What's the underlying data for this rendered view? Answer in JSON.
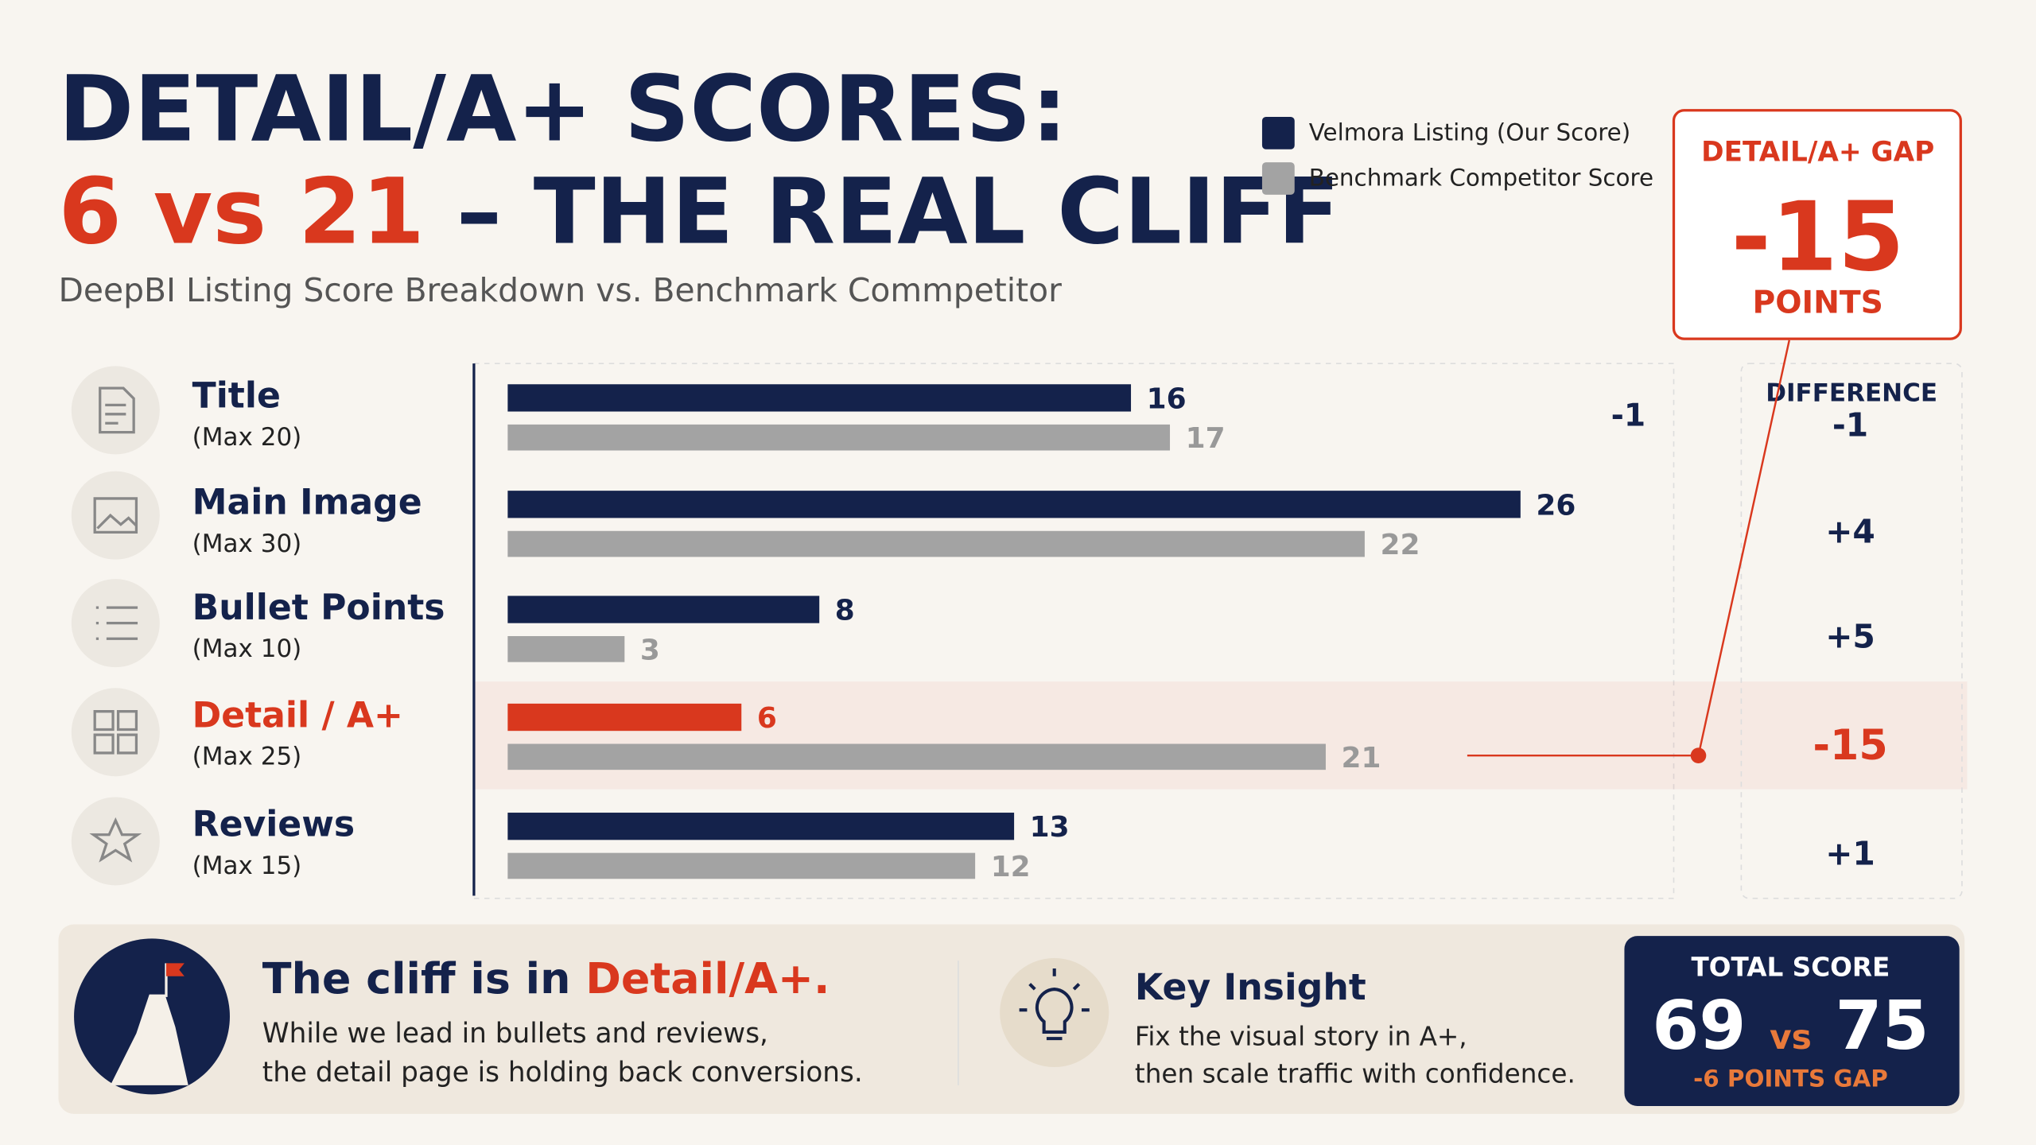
{
  "header": {
    "title_line1": "DETAIL/A+ SCORES:",
    "title_highlight": "6 vs 21",
    "title_rest": "– THE REAL CLIFF",
    "subtitle": "DeepBI Listing Score Breakdown vs. Benchmark Commpetitor"
  },
  "chart_data": {
    "type": "bar",
    "orientation": "horizontal",
    "categories": [
      "Title",
      "Main Image",
      "Bullet Points",
      "Detail / A+",
      "Reviews"
    ],
    "category_notes": [
      "(Max 20)",
      "(Max 30)",
      "(Max 10)",
      "(Max 25)",
      "(Max 15)"
    ],
    "series": [
      {
        "name": "Velmora Listing (Our Score)",
        "color": "#14224b",
        "values": [
          16,
          26,
          8,
          6,
          13
        ]
      },
      {
        "name": "Benchmark Competitor Score",
        "color": "#a3a3a3",
        "values": [
          17,
          22,
          3,
          21,
          12
        ]
      }
    ],
    "highlight_index": 3,
    "highlight_color": "#d9381e",
    "difference": {
      "title": "DIFFERENCE",
      "values": [
        -1,
        4,
        5,
        -15,
        1
      ],
      "value_labels": [
        "-1",
        "+4",
        "+5",
        "-15",
        "+1"
      ]
    },
    "annotations": [
      "-1"
    ]
  },
  "callout": {
    "title": "DETAIL/A+ GAP",
    "value": -15,
    "unit": "POINTS"
  },
  "footer": {
    "headline": "The cliff is in",
    "headline_highlight": "Detail/A+.",
    "lines": [
      "While we lead in bullets and reviews,",
      "the detail page is holding back conversions."
    ],
    "insight_title": "Key Insight",
    "insight_lines": [
      "Fix the visual story in A+,",
      "then scale traffic with confidence."
    ],
    "total_title": "TOTAL SCORE",
    "total_ours": 69,
    "total_vs": "vs",
    "total_theirs": 75,
    "total_gap": "-6 POINTS GAP"
  }
}
